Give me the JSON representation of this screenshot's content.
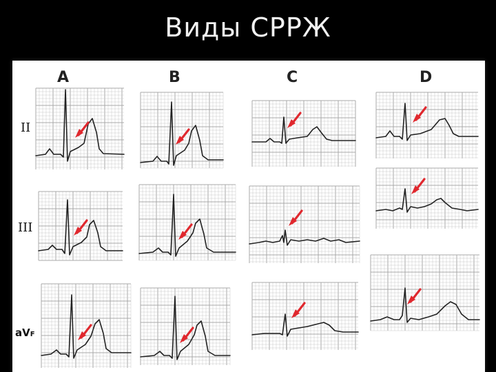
{
  "slide": {
    "title": "Виды СРРЖ"
  },
  "columns": [
    "A",
    "B",
    "C",
    "D"
  ],
  "leads": [
    "II",
    "III",
    "aV",
    "F"
  ],
  "colors": {
    "background": "#000000",
    "panel": "#ffffff",
    "arrow": "#e0282e",
    "grid": "#b5b5b5",
    "trace": "#222222"
  }
}
